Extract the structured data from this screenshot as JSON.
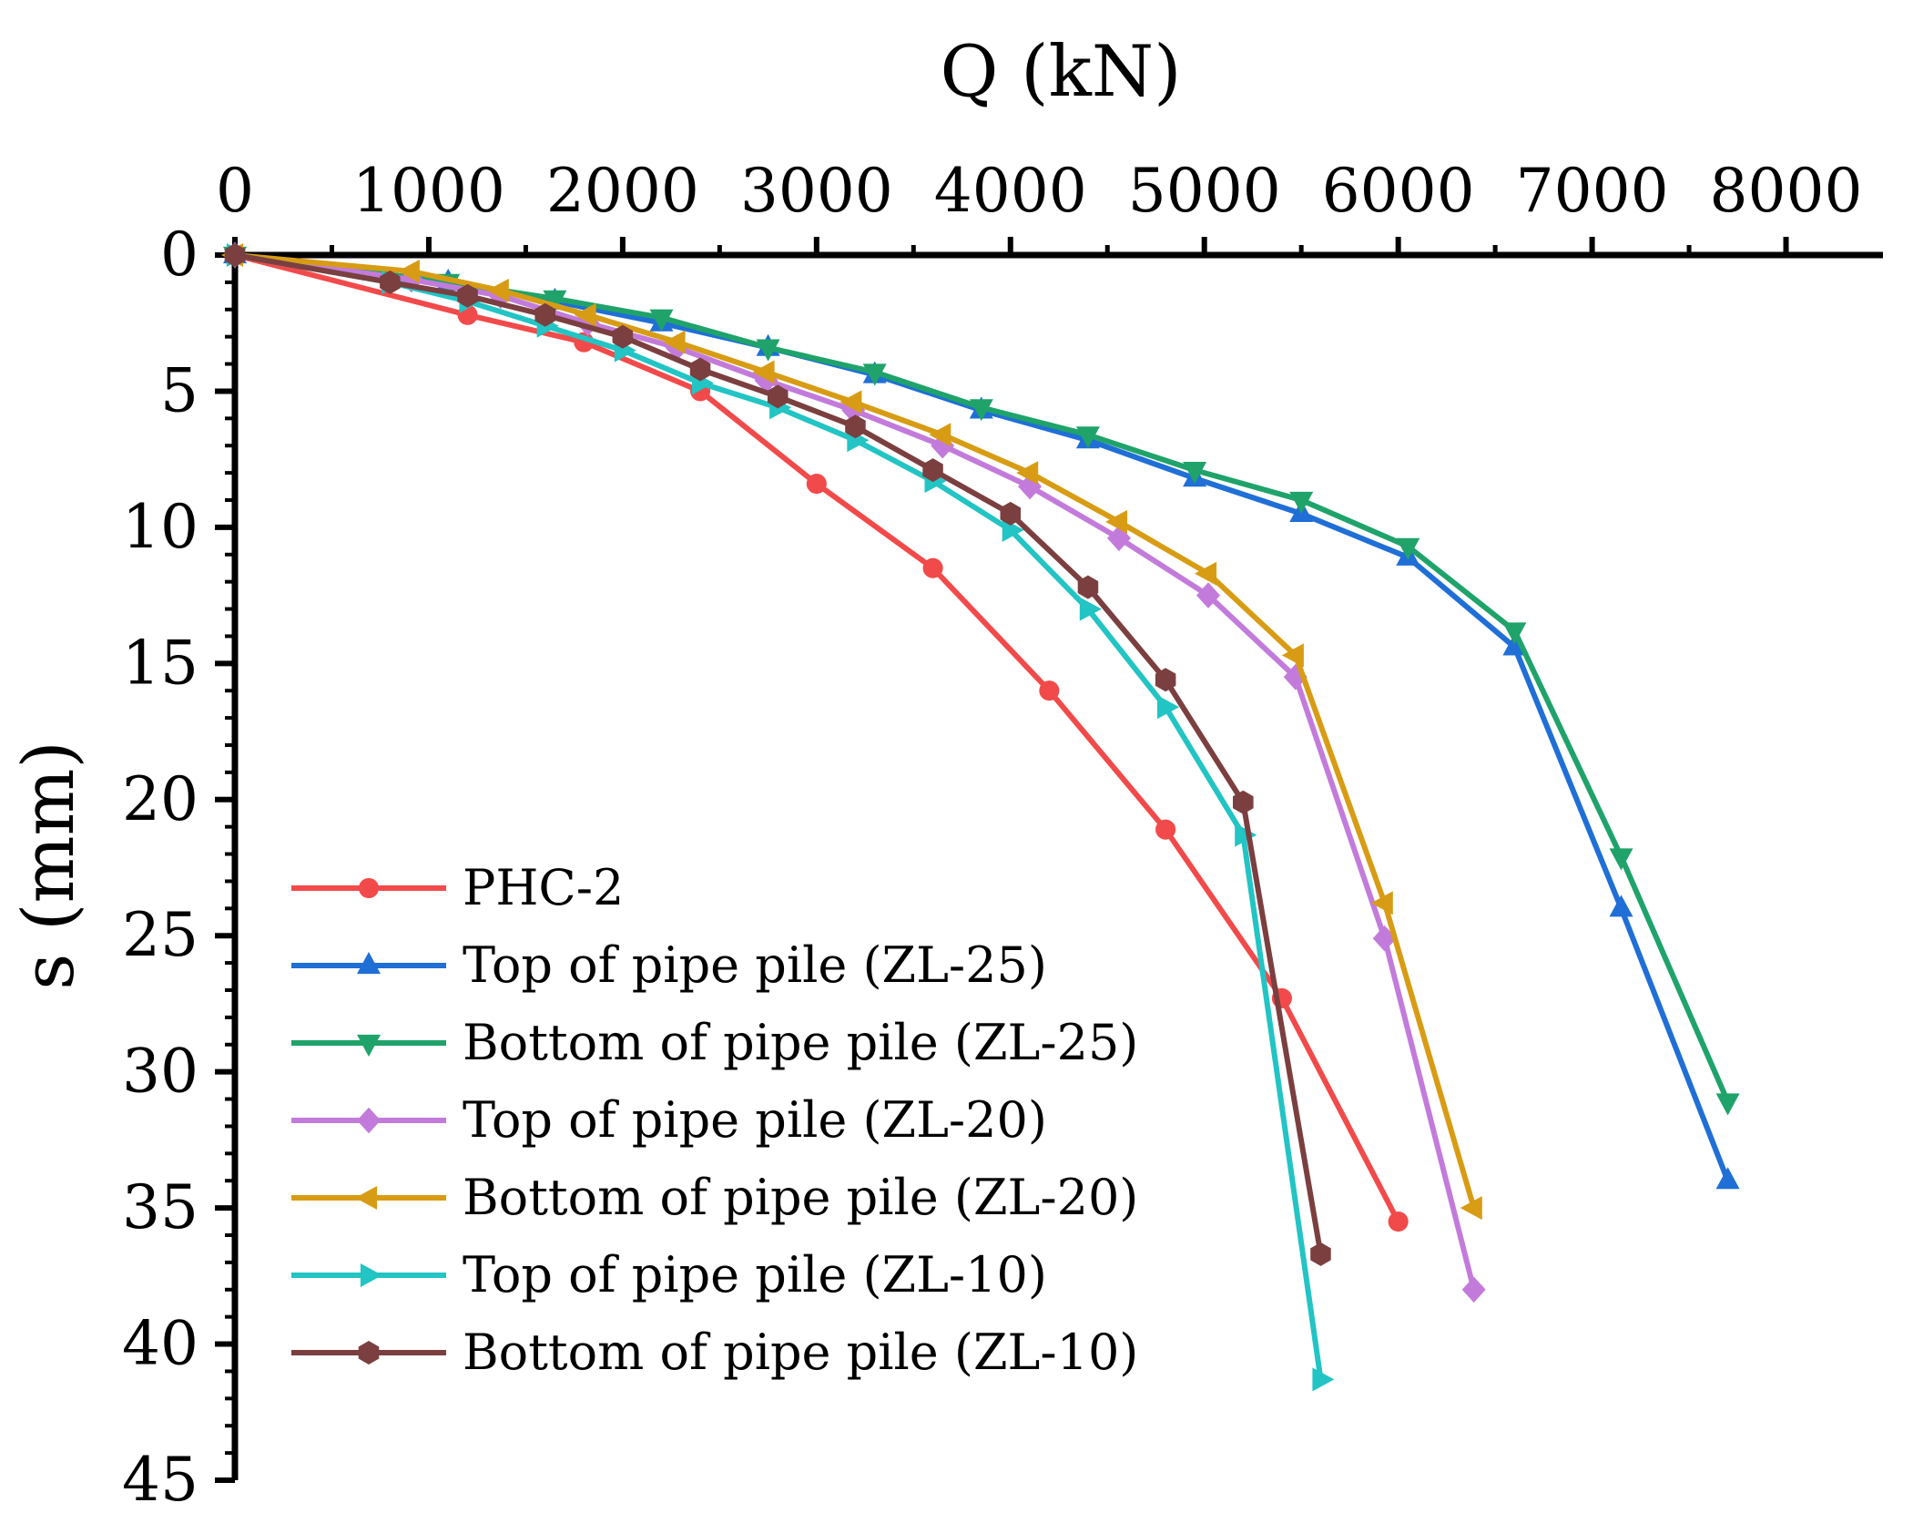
{
  "chart_data": {
    "type": "line",
    "title": "",
    "xlabel": "Q (kN)",
    "ylabel": "s (mm)",
    "xlim": [
      0,
      8500
    ],
    "ylim": [
      0,
      45
    ],
    "x_axis_position": "top",
    "y_inverted": true,
    "x_ticks": [
      0,
      1000,
      2000,
      3000,
      4000,
      5000,
      6000,
      7000,
      8000
    ],
    "x_tick_labels": [
      "0",
      "1000",
      "2000",
      "3000",
      "4000",
      "5000",
      "6000",
      "7000",
      "8000"
    ],
    "y_ticks": [
      0,
      5,
      10,
      15,
      20,
      25,
      30,
      35,
      40,
      45
    ],
    "y_tick_labels": [
      "0",
      "5",
      "10",
      "15",
      "20",
      "25",
      "30",
      "35",
      "40",
      "45"
    ],
    "grid": false,
    "legend_position": "lower-left",
    "series": [
      {
        "name": "PHC-2",
        "color": "#f24a4a",
        "marker": "circle",
        "x": [
          0,
          1200,
          1800,
          2400,
          3000,
          3600,
          4200,
          4800,
          5400,
          6000
        ],
        "y": [
          0,
          2.2,
          3.2,
          5.0,
          8.4,
          11.5,
          16.0,
          21.1,
          27.3,
          35.5
        ]
      },
      {
        "name": "Top of pipe pile (ZL-25)",
        "color": "#1f6fd6",
        "marker": "triangle-up",
        "x": [
          0,
          1100,
          1650,
          2200,
          2750,
          3300,
          3850,
          4400,
          4950,
          5500,
          6050,
          6600,
          7150,
          7700
        ],
        "y": [
          0,
          1.0,
          1.7,
          2.5,
          3.4,
          4.4,
          5.7,
          6.8,
          8.2,
          9.5,
          11.1,
          14.4,
          24.0,
          34.0
        ]
      },
      {
        "name": "Bottom of pipe pile (ZL-25)",
        "color": "#1fa36a",
        "marker": "triangle-down",
        "x": [
          0,
          1100,
          1650,
          2200,
          2750,
          3300,
          3850,
          4400,
          4950,
          5500,
          6050,
          6600,
          7150,
          7700
        ],
        "y": [
          0,
          1.0,
          1.6,
          2.3,
          3.4,
          4.3,
          5.6,
          6.6,
          7.9,
          9.0,
          10.7,
          13.8,
          22.1,
          31.1
        ]
      },
      {
        "name": "Top of pipe pile (ZL-20)",
        "color": "#c37bdb",
        "marker": "diamond",
        "x": [
          0,
          910,
          1370,
          1820,
          2280,
          2740,
          3190,
          3650,
          4100,
          4560,
          5020,
          5470,
          5930,
          6390
        ],
        "y": [
          0,
          0.9,
          1.5,
          2.5,
          3.4,
          4.6,
          5.7,
          7.0,
          8.5,
          10.4,
          12.5,
          15.5,
          25.1,
          38.0
        ]
      },
      {
        "name": "Bottom of pipe pile (ZL-20)",
        "color": "#d89c14",
        "marker": "triangle-left",
        "x": [
          0,
          910,
          1370,
          1820,
          2280,
          2740,
          3190,
          3650,
          4100,
          4560,
          5020,
          5470,
          5930,
          6390
        ],
        "y": [
          0,
          0.6,
          1.3,
          2.2,
          3.2,
          4.3,
          5.4,
          6.6,
          8.0,
          9.8,
          11.7,
          14.7,
          23.8,
          35.0
        ]
      },
      {
        "name": "Top of pipe pile (ZL-10)",
        "color": "#22c4c4",
        "marker": "triangle-right",
        "x": [
          0,
          800,
          1200,
          1600,
          2000,
          2400,
          2800,
          3200,
          3600,
          4000,
          4400,
          4800,
          5200,
          5600
        ],
        "y": [
          0,
          1.0,
          1.7,
          2.6,
          3.5,
          4.7,
          5.6,
          6.8,
          8.3,
          10.1,
          13.0,
          16.6,
          21.3,
          41.3
        ]
      },
      {
        "name": "Bottom of pipe pile (ZL-10)",
        "color": "#7b3f3f",
        "marker": "hexagon",
        "x": [
          0,
          800,
          1200,
          1600,
          2000,
          2400,
          2800,
          3200,
          3600,
          4000,
          4400,
          4800,
          5200,
          5600
        ],
        "y": [
          0,
          1.0,
          1.5,
          2.2,
          3.0,
          4.2,
          5.2,
          6.3,
          7.9,
          9.5,
          12.2,
          15.6,
          20.1,
          36.7
        ]
      }
    ]
  }
}
